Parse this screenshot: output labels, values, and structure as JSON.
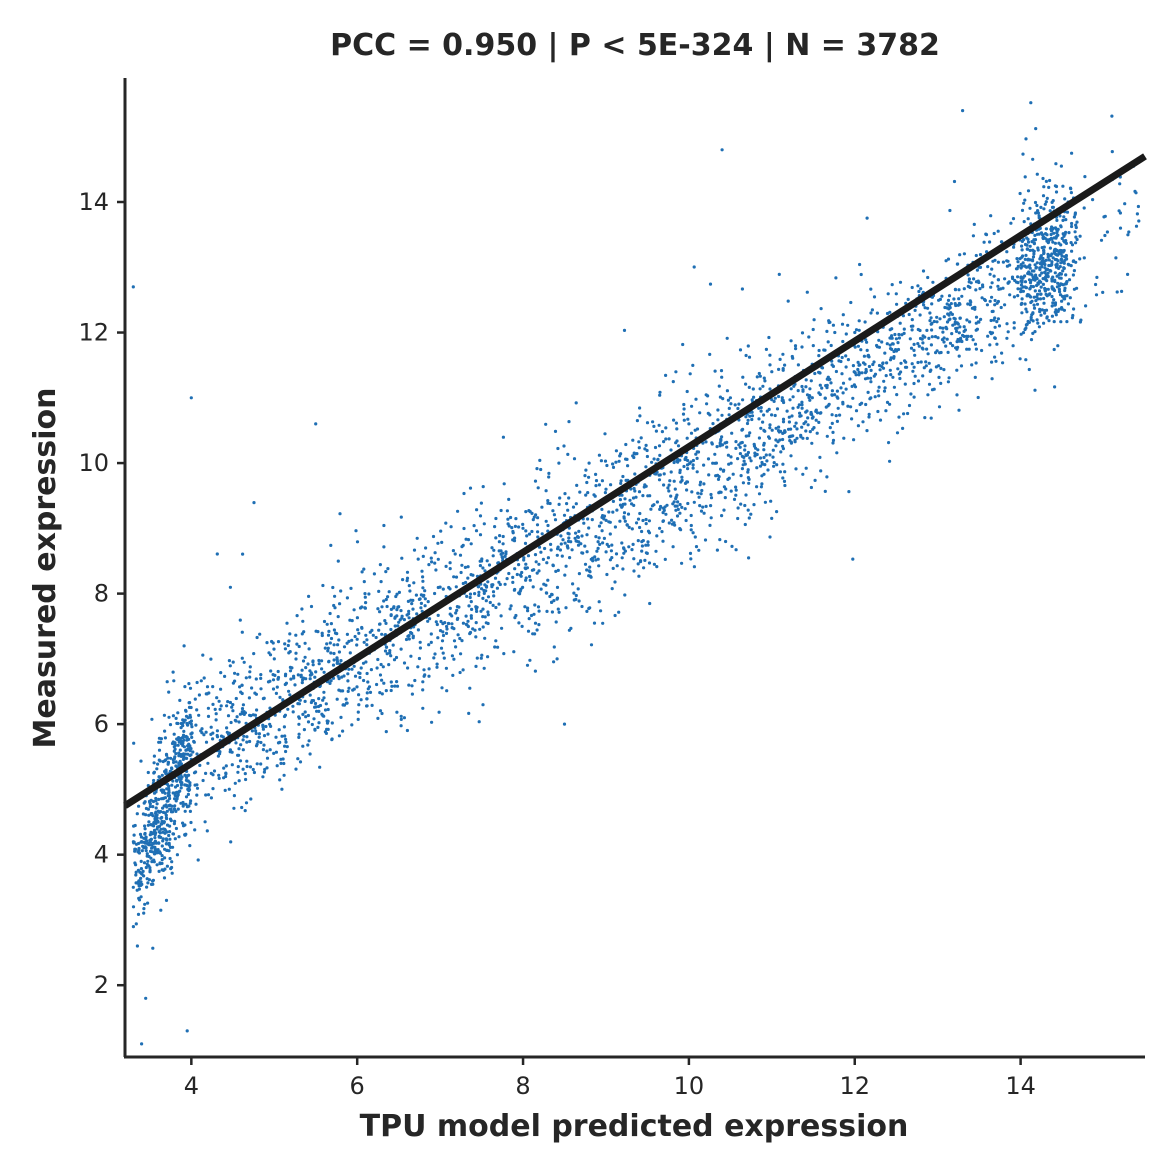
{
  "chart_data": {
    "type": "scatter",
    "title": "PCC =  0.950 | P <  5E-324 | N = 3782",
    "xlabel": "TPU model predicted expression",
    "ylabel": "Measured expression",
    "xlim": [
      3.2,
      15.5
    ],
    "ylim": [
      0.9,
      15.9
    ],
    "xticks": [
      4,
      6,
      8,
      10,
      12,
      14
    ],
    "yticks": [
      2,
      4,
      6,
      8,
      10,
      12,
      14
    ],
    "xtick_labels": [
      "4",
      "6",
      "8",
      "10",
      "12",
      "14"
    ],
    "ytick_labels": [
      "2",
      "4",
      "6",
      "8",
      "10",
      "12",
      "14"
    ],
    "grid": false,
    "legend": "none",
    "point_color": "#1f6fb4",
    "fit_line_color": "#1a1a1a",
    "n_points": 3782,
    "fit_line": {
      "x": [
        3.2,
        15.5
      ],
      "y": [
        4.75,
        14.7
      ]
    },
    "sample_points": [
      [
        3.3,
        3.5
      ],
      [
        3.35,
        2.6
      ],
      [
        3.4,
        4.2
      ],
      [
        3.45,
        1.8
      ],
      [
        3.5,
        3.8
      ],
      [
        3.5,
        5.0
      ],
      [
        3.6,
        4.5
      ],
      [
        3.7,
        3.3
      ],
      [
        3.8,
        5.5
      ],
      [
        3.9,
        4.8
      ],
      [
        4.0,
        6.0
      ],
      [
        4.2,
        5.4
      ],
      [
        4.5,
        6.3
      ],
      [
        4.8,
        6.0
      ],
      [
        5.0,
        7.0
      ],
      [
        5.5,
        6.8
      ],
      [
        6.0,
        7.3
      ],
      [
        6.5,
        7.8
      ],
      [
        7.0,
        8.1
      ],
      [
        7.5,
        8.5
      ],
      [
        8.0,
        9.0
      ],
      [
        8.5,
        9.2
      ],
      [
        9.0,
        9.6
      ],
      [
        9.5,
        10.1
      ],
      [
        10.0,
        10.6
      ],
      [
        10.5,
        11.0
      ],
      [
        11.0,
        11.4
      ],
      [
        11.5,
        11.8
      ],
      [
        12.0,
        12.0
      ],
      [
        12.5,
        12.3
      ],
      [
        13.0,
        12.7
      ],
      [
        13.5,
        13.0
      ],
      [
        14.0,
        13.5
      ],
      [
        14.5,
        13.9
      ],
      [
        15.0,
        14.3
      ],
      [
        3.3,
        12.7
      ],
      [
        4.0,
        11.0
      ],
      [
        10.4,
        14.8
      ],
      [
        13.3,
        15.4
      ],
      [
        3.95,
        1.3
      ],
      [
        3.4,
        1.1
      ],
      [
        5.5,
        10.6
      ],
      [
        8.5,
        6.0
      ]
    ]
  }
}
